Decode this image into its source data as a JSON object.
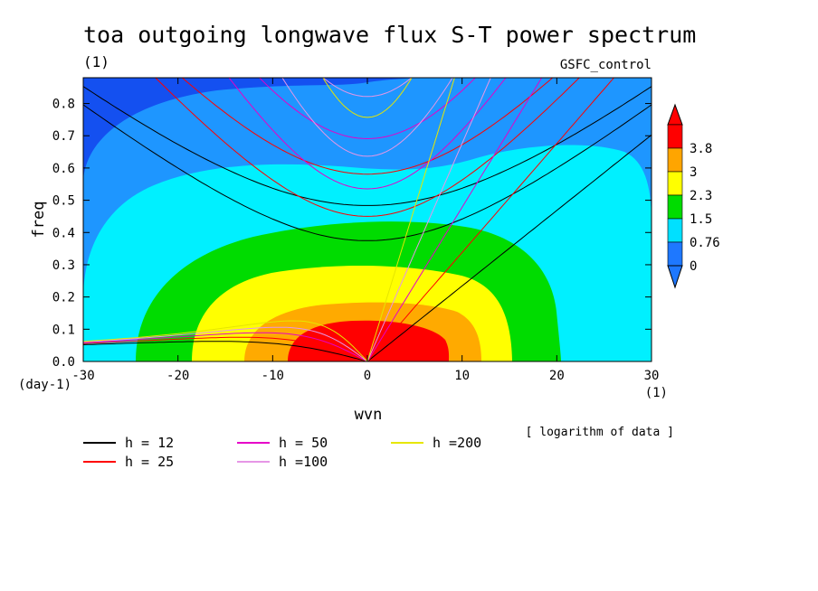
{
  "chart_data": {
    "type": "heatmap",
    "title": "toa outgoing longwave flux S-T power spectrum",
    "units_label": "(1)",
    "run_label": "GSFC_control",
    "xlabel": "wvn",
    "ylabel": "freq",
    "x_unit": "(1)",
    "y_unit": "(day-1)",
    "xlim": [
      -30,
      30
    ],
    "ylim": [
      0,
      0.88
    ],
    "x_ticks": [
      -30,
      -20,
      -10,
      0,
      10,
      20,
      30
    ],
    "y_ticks": [
      0.0,
      0.1,
      0.2,
      0.3,
      0.4,
      0.5,
      0.6,
      0.7,
      0.8
    ],
    "x_tick_labels": [
      "-30",
      "-20",
      "-10",
      "0",
      "10",
      "20",
      "30"
    ],
    "y_tick_labels": [
      "0.0",
      "0.1",
      "0.2",
      "0.3",
      "0.4",
      "0.5",
      "0.6",
      "0.7",
      "0.8"
    ],
    "colorbar": {
      "labels": [
        "0",
        "0.76",
        "1.5",
        "2.3",
        "3",
        "3.8"
      ],
      "colors": [
        "#1e78ff",
        "#00e0ff",
        "#00dc00",
        "#ffff00",
        "#ffa500",
        "#ff0000"
      ],
      "over_color": "#ff0000",
      "under_color": "#1e78ff"
    },
    "fill_levels": [
      {
        "level": "< 0",
        "color": "#1450f0"
      },
      {
        "level": "0 - 0.76",
        "color": "#1e96ff"
      },
      {
        "level": "0.76 - 1.5",
        "color": "#00f0ff"
      },
      {
        "level": "1.5 - 2.3",
        "color": "#00dc00"
      },
      {
        "level": "2.3 - 3",
        "color": "#ffff00"
      },
      {
        "level": "3 - 3.8",
        "color": "#ffaa00"
      },
      {
        "level": "> 3.8",
        "color": "#ff0000"
      }
    ],
    "note": "[ logarithm of data ]",
    "dispersion_legend": [
      {
        "label": "h = 12",
        "h": 12,
        "color": "#000000"
      },
      {
        "label": "h = 25",
        "h": 25,
        "color": "#ff0000"
      },
      {
        "label": "h = 50",
        "h": 50,
        "color": "#e600c8"
      },
      {
        "label": "h =100",
        "h": 100,
        "color": "#e696e6"
      },
      {
        "label": "h =200",
        "h": 200,
        "color": "#e6e600"
      }
    ]
  }
}
